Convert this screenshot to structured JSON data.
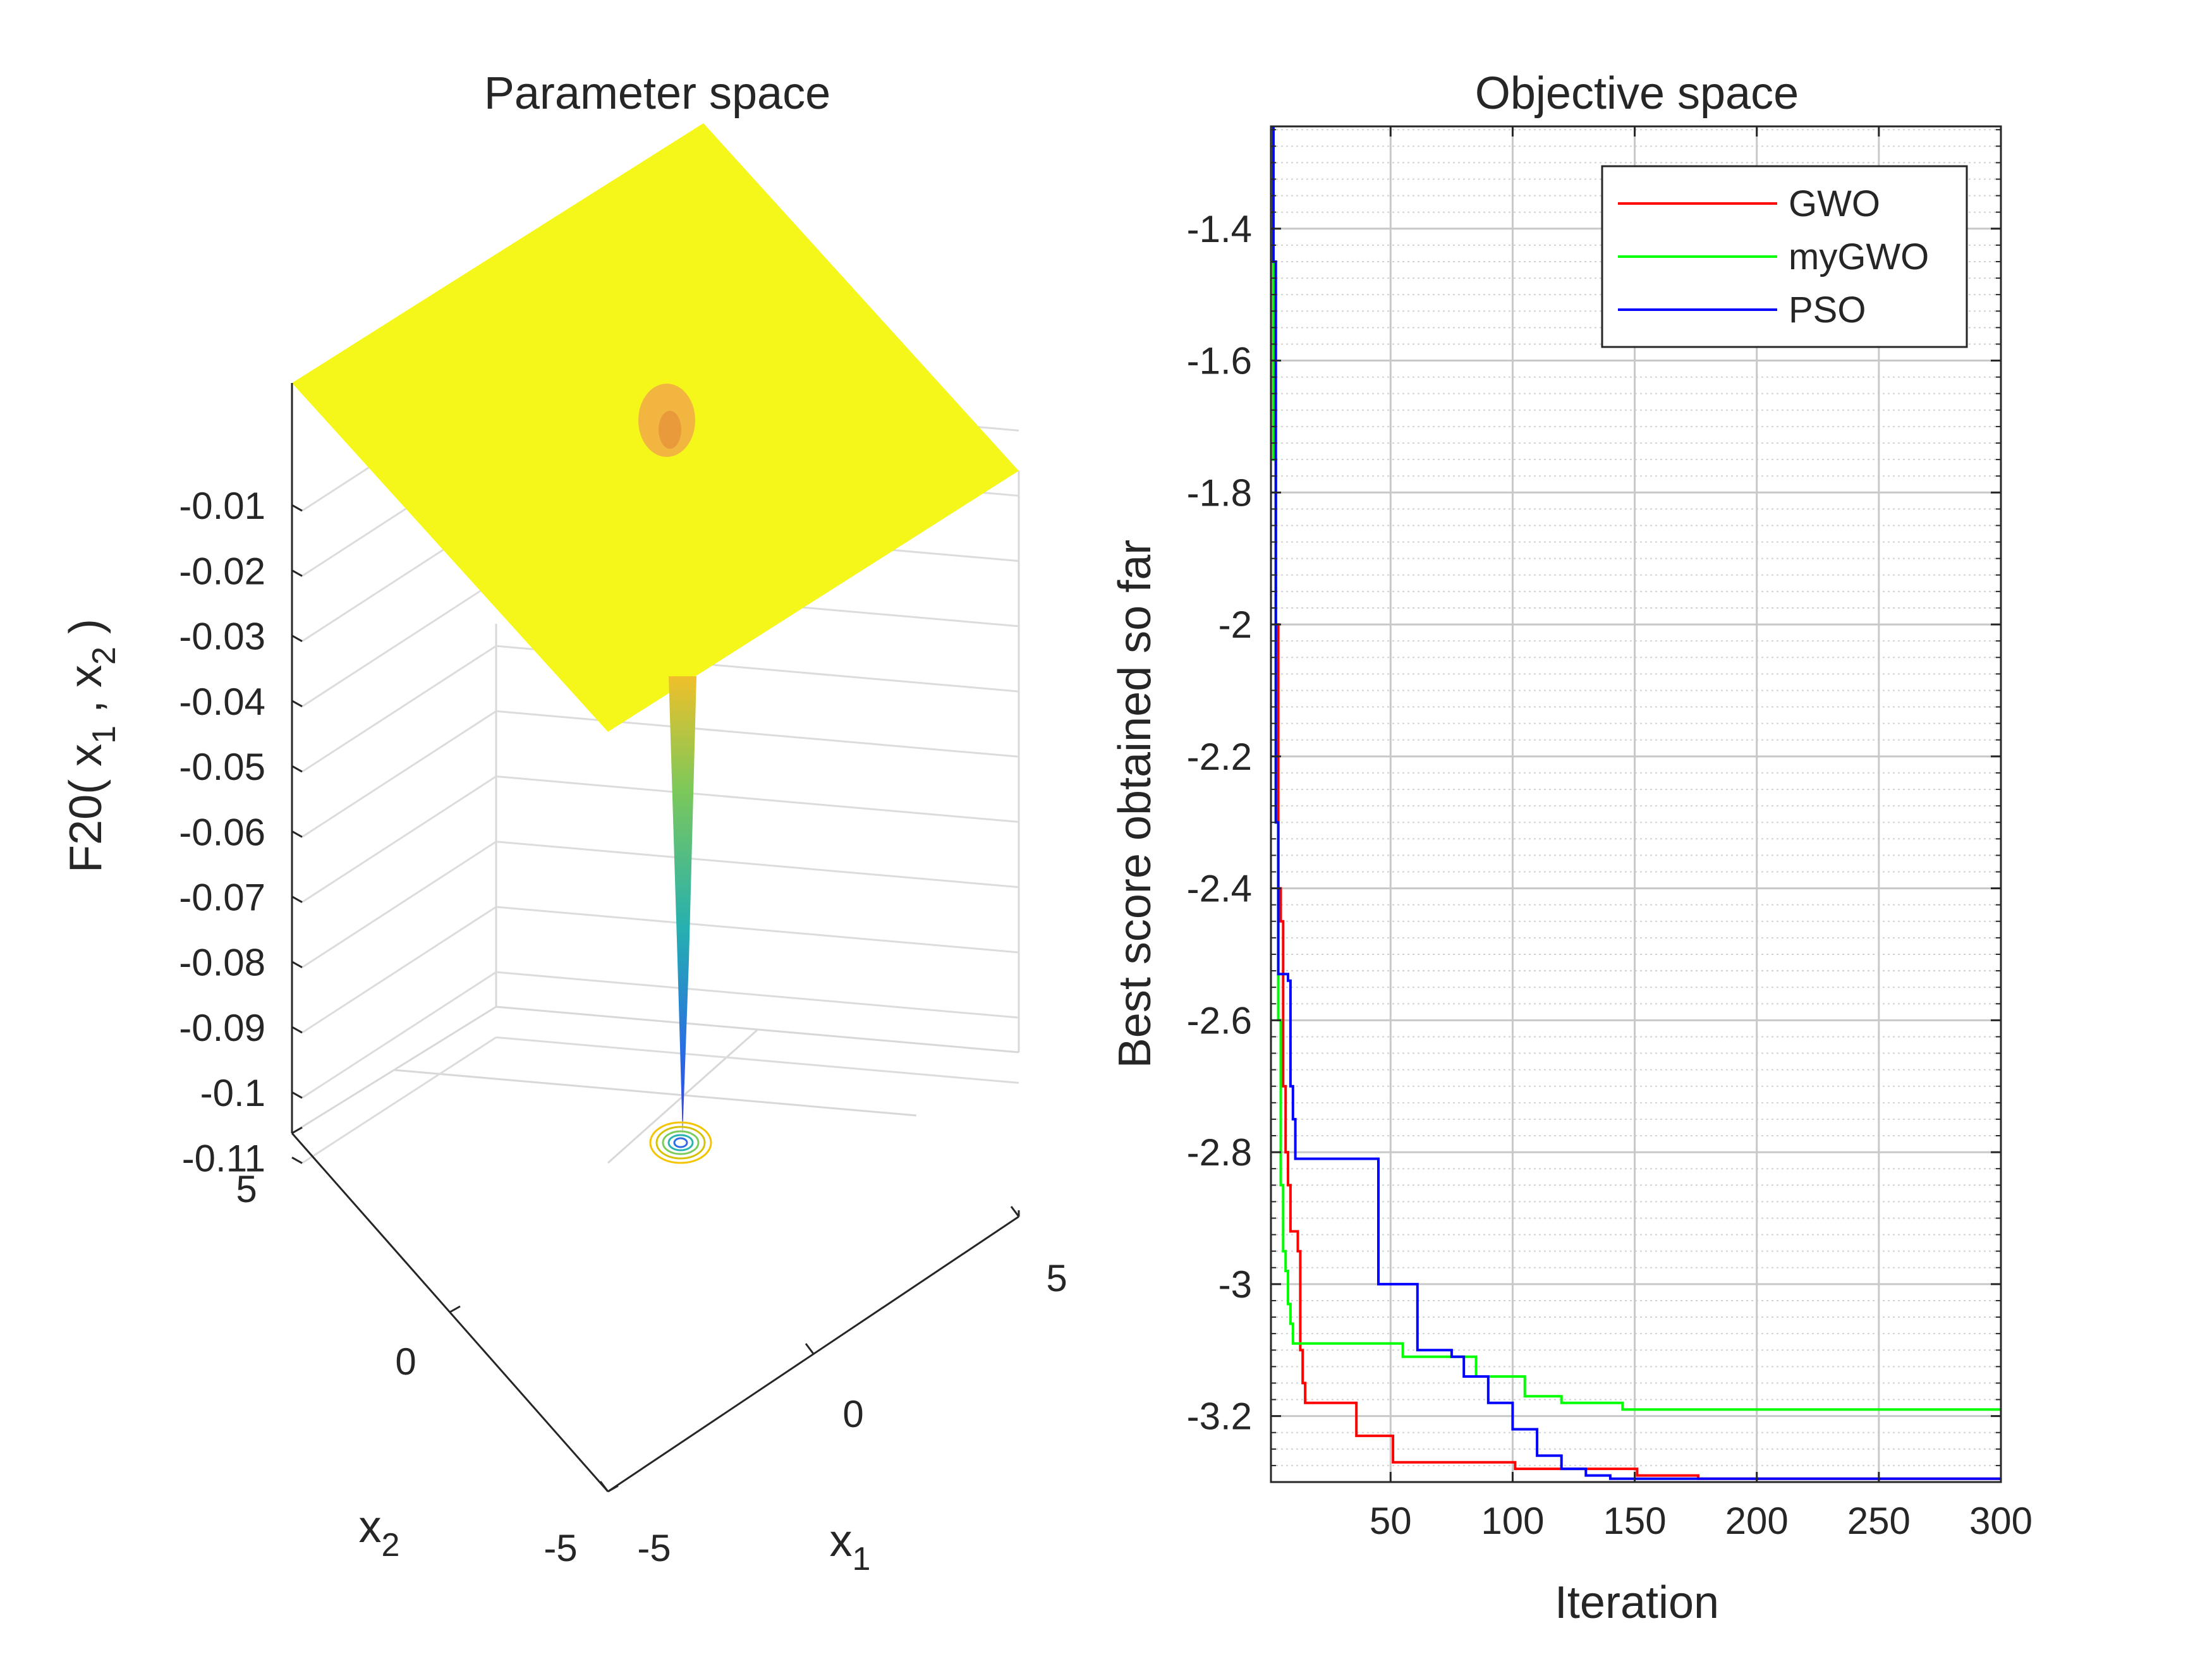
{
  "chart_data": [
    {
      "type": "surface",
      "title": "Parameter space",
      "zlabel_parts": {
        "pre": "F20( x",
        "sub1": "1",
        "mid": " , x",
        "sub2": "2",
        "post": " )"
      },
      "xlabel": {
        "base": "x",
        "sub": "1"
      },
      "ylabel": {
        "base": "x",
        "sub": "2"
      },
      "x_ticks": [
        "-5",
        "0",
        "5"
      ],
      "y_ticks": [
        "-5",
        "0",
        "5"
      ],
      "z_ticks": [
        "-0.01",
        "-0.02",
        "-0.03",
        "-0.04",
        "-0.05",
        "-0.06",
        "-0.07",
        "-0.08",
        "-0.09",
        "-0.1",
        "-0.11"
      ],
      "xlim": [
        -5,
        5
      ],
      "ylim": [
        -5,
        5
      ],
      "zlim": [
        -0.115,
        0
      ],
      "surface_plateau_color": "#f5f71b",
      "minimum": {
        "x1": 0,
        "x2": 0,
        "value": -0.115
      },
      "grid": true
    },
    {
      "type": "line",
      "title": "Objective space",
      "xlabel": "Iteration",
      "ylabel": "Best score obtained so far",
      "xlim": [
        1,
        300
      ],
      "ylim": [
        -3.3,
        -1.245
      ],
      "x_ticks": [
        50,
        100,
        150,
        200,
        250,
        300
      ],
      "y_ticks": [
        -1.4,
        -1.6,
        -1.8,
        -2,
        -2.2,
        -2.4,
        -2.6,
        -2.8,
        -3,
        -3.2
      ],
      "y_tick_labels": [
        "-1.4",
        "-1.6",
        "-1.8",
        "-2",
        "-2.2",
        "-2.4",
        "-2.6",
        "-2.8",
        "-3",
        "-3.2"
      ],
      "x_tick_labels": [
        "50",
        "100",
        "150",
        "200",
        "250",
        "300"
      ],
      "grid": true,
      "legend_position": "top-right",
      "series": [
        {
          "name": "GWO",
          "color": "#ff0000",
          "points": [
            [
              1,
              -1.245
            ],
            [
              2,
              -1.75
            ],
            [
              3,
              -2.0
            ],
            [
              4,
              -2.4
            ],
            [
              5,
              -2.45
            ],
            [
              6,
              -2.7
            ],
            [
              7,
              -2.8
            ],
            [
              8,
              -2.85
            ],
            [
              9,
              -2.92
            ],
            [
              12,
              -2.95
            ],
            [
              13,
              -3.1
            ],
            [
              14,
              -3.15
            ],
            [
              15,
              -3.18
            ],
            [
              35,
              -3.18
            ],
            [
              36,
              -3.23
            ],
            [
              50,
              -3.23
            ],
            [
              51,
              -3.27
            ],
            [
              100,
              -3.27
            ],
            [
              101,
              -3.28
            ],
            [
              150,
              -3.28
            ],
            [
              151,
              -3.29
            ],
            [
              175,
              -3.29
            ],
            [
              176,
              -3.295
            ],
            [
              300,
              -3.295
            ]
          ]
        },
        {
          "name": "myGWO",
          "color": "#00ff00",
          "points": [
            [
              1,
              -1.245
            ],
            [
              2,
              -1.75
            ],
            [
              3,
              -2.3
            ],
            [
              4,
              -2.6
            ],
            [
              5,
              -2.85
            ],
            [
              6,
              -2.95
            ],
            [
              7,
              -2.98
            ],
            [
              8,
              -3.03
            ],
            [
              9,
              -3.06
            ],
            [
              10,
              -3.09
            ],
            [
              50,
              -3.09
            ],
            [
              55,
              -3.11
            ],
            [
              80,
              -3.11
            ],
            [
              85,
              -3.14
            ],
            [
              100,
              -3.14
            ],
            [
              105,
              -3.17
            ],
            [
              120,
              -3.18
            ],
            [
              145,
              -3.19
            ],
            [
              300,
              -3.19
            ]
          ]
        },
        {
          "name": "PSO",
          "color": "#0000ff",
          "points": [
            [
              1,
              -1.245
            ],
            [
              2,
              -1.45
            ],
            [
              3,
              -2.3
            ],
            [
              4,
              -2.53
            ],
            [
              8,
              -2.54
            ],
            [
              9,
              -2.7
            ],
            [
              10,
              -2.75
            ],
            [
              11,
              -2.81
            ],
            [
              44,
              -2.81
            ],
            [
              45,
              -3.0
            ],
            [
              60,
              -3.0
            ],
            [
              61,
              -3.1
            ],
            [
              75,
              -3.11
            ],
            [
              80,
              -3.14
            ],
            [
              90,
              -3.18
            ],
            [
              100,
              -3.22
            ],
            [
              110,
              -3.26
            ],
            [
              120,
              -3.28
            ],
            [
              130,
              -3.29
            ],
            [
              140,
              -3.295
            ],
            [
              300,
              -3.295
            ]
          ]
        }
      ]
    }
  ]
}
